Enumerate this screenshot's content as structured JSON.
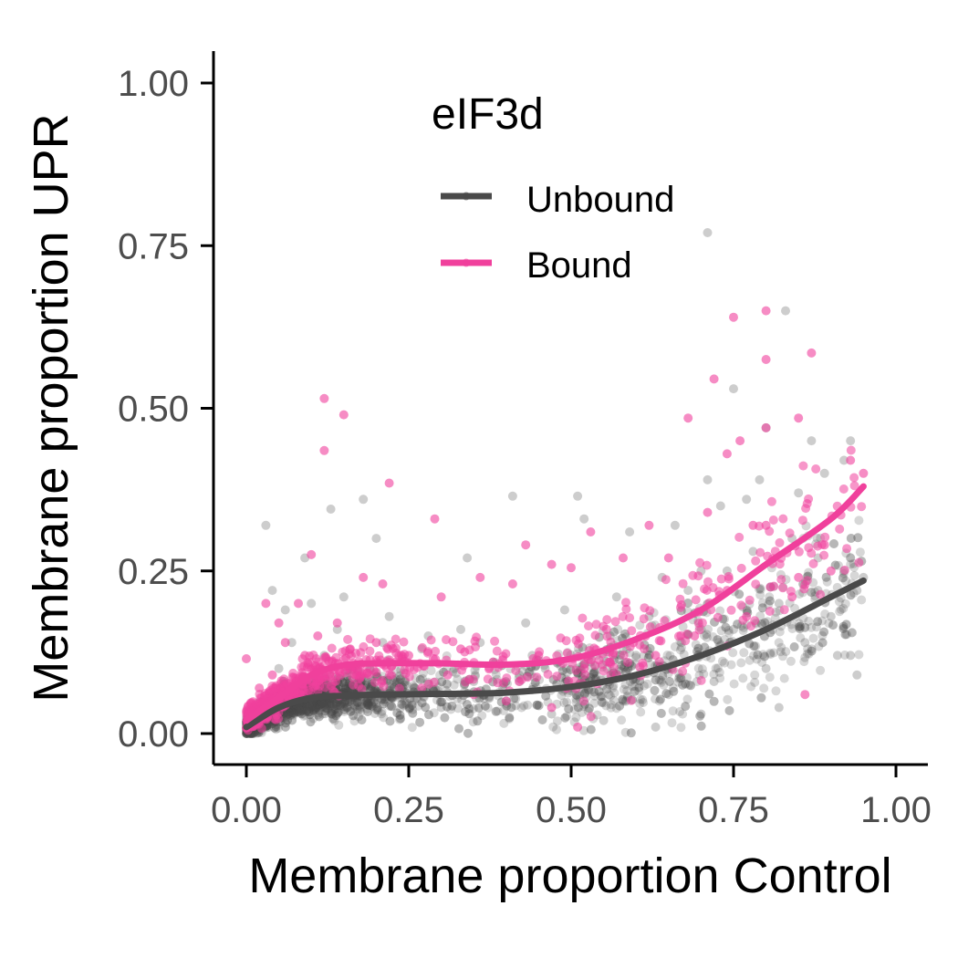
{
  "colors": {
    "unbound": "#4a4a4a",
    "bound": "#f0409c",
    "axis": "#000000",
    "tick_text": "#4d4d4d"
  },
  "chart_data": {
    "type": "scatter",
    "xlabel": "Membrane proportion Control",
    "ylabel": "Membrane proportion UPR",
    "xlim": [
      -0.05,
      1.05
    ],
    "ylim": [
      -0.05,
      1.05
    ],
    "x_ticks": [
      "0.00",
      "0.25",
      "0.50",
      "0.75",
      "1.00"
    ],
    "y_ticks": [
      "0.00",
      "0.25",
      "0.50",
      "0.75",
      "1.00"
    ],
    "grid": false,
    "legend": {
      "title": "eIF3d",
      "placement": "top-center inside plot",
      "entries": [
        "Unbound",
        "Bound"
      ]
    },
    "series": [
      {
        "name": "Unbound",
        "color": "#4a4a4a",
        "trend": {
          "x": [
            0.0,
            0.05,
            0.1,
            0.15,
            0.2,
            0.3,
            0.4,
            0.5,
            0.6,
            0.7,
            0.8,
            0.9,
            0.95
          ],
          "y": [
            0.01,
            0.04,
            0.055,
            0.058,
            0.06,
            0.061,
            0.063,
            0.072,
            0.09,
            0.12,
            0.16,
            0.21,
            0.235
          ]
        },
        "points": [
          [
            0.71,
            0.77
          ],
          [
            0.83,
            0.65
          ],
          [
            0.75,
            0.53
          ],
          [
            0.8,
            0.47
          ],
          [
            0.87,
            0.45
          ],
          [
            0.93,
            0.45
          ],
          [
            0.92,
            0.42
          ],
          [
            0.71,
            0.39
          ],
          [
            0.79,
            0.39
          ],
          [
            0.85,
            0.37
          ],
          [
            0.03,
            0.32
          ],
          [
            0.13,
            0.345
          ],
          [
            0.18,
            0.36
          ],
          [
            0.41,
            0.365
          ],
          [
            0.51,
            0.365
          ],
          [
            0.59,
            0.31
          ],
          [
            0.52,
            0.33
          ],
          [
            0.2,
            0.3
          ],
          [
            0.09,
            0.27
          ],
          [
            0.34,
            0.27
          ],
          [
            0.66,
            0.32
          ],
          [
            0.73,
            0.35
          ],
          [
            0.77,
            0.36
          ],
          [
            0.89,
            0.4
          ],
          [
            0.94,
            0.22
          ],
          [
            0.93,
            0.12
          ],
          [
            0.94,
            0.09
          ],
          [
            0.91,
            0.12
          ],
          [
            0.82,
            0.04
          ],
          [
            0.7,
            0.03
          ],
          [
            0.63,
            0.01
          ],
          [
            0.55,
            0.02
          ],
          [
            0.47,
            0.03
          ],
          [
            0.4,
            0.05
          ],
          [
            0.3,
            0.04
          ],
          [
            0.1,
            0.2
          ],
          [
            0.06,
            0.19
          ],
          [
            0.04,
            0.22
          ],
          [
            0.15,
            0.21
          ],
          [
            0.22,
            0.18
          ],
          [
            0.28,
            0.15
          ],
          [
            0.36,
            0.14
          ],
          [
            0.44,
            0.12
          ],
          [
            0.56,
            0.15
          ],
          [
            0.62,
            0.18
          ],
          [
            0.68,
            0.22
          ],
          [
            0.74,
            0.25
          ],
          [
            0.78,
            0.28
          ],
          [
            0.84,
            0.3
          ],
          [
            0.88,
            0.27
          ],
          [
            0.9,
            0.18
          ],
          [
            0.86,
            0.14
          ],
          [
            0.8,
            0.1
          ],
          [
            0.72,
            0.08
          ],
          [
            0.65,
            0.06
          ],
          [
            0.58,
            0.05
          ],
          [
            0.5,
            0.07
          ],
          [
            0.42,
            0.09
          ],
          [
            0.35,
            0.08
          ],
          [
            0.26,
            0.07
          ],
          [
            0.16,
            0.06
          ],
          [
            0.08,
            0.05
          ],
          [
            0.02,
            0.03
          ],
          [
            0.01,
            0.01
          ],
          [
            0.0,
            0.0
          ],
          [
            0.05,
            0.1
          ],
          [
            0.12,
            0.12
          ],
          [
            0.19,
            0.1
          ],
          [
            0.24,
            0.11
          ],
          [
            0.32,
            0.1
          ],
          [
            0.38,
            0.11
          ],
          [
            0.46,
            0.1
          ],
          [
            0.53,
            0.11
          ],
          [
            0.6,
            0.12
          ],
          [
            0.67,
            0.14
          ],
          [
            0.75,
            0.16
          ],
          [
            0.82,
            0.2
          ],
          [
            0.88,
            0.22
          ],
          [
            0.92,
            0.25
          ],
          [
            0.95,
            0.24
          ],
          [
            0.7,
            0.25
          ],
          [
            0.64,
            0.24
          ],
          [
            0.57,
            0.21
          ],
          [
            0.49,
            0.19
          ],
          [
            0.43,
            0.17
          ],
          [
            0.33,
            0.16
          ],
          [
            0.27,
            0.13
          ],
          [
            0.21,
            0.14
          ],
          [
            0.14,
            0.16
          ],
          [
            0.07,
            0.14
          ]
        ]
      },
      {
        "name": "Bound",
        "color": "#f0409c",
        "trend": {
          "x": [
            0.0,
            0.05,
            0.1,
            0.15,
            0.2,
            0.3,
            0.4,
            0.5,
            0.6,
            0.7,
            0.8,
            0.9,
            0.95
          ],
          "y": [
            0.02,
            0.055,
            0.09,
            0.105,
            0.108,
            0.108,
            0.106,
            0.115,
            0.145,
            0.19,
            0.26,
            0.33,
            0.38
          ]
        },
        "points": [
          [
            0.12,
            0.515
          ],
          [
            0.15,
            0.49
          ],
          [
            0.12,
            0.435
          ],
          [
            0.22,
            0.385
          ],
          [
            0.29,
            0.33
          ],
          [
            0.8,
            0.65
          ],
          [
            0.75,
            0.64
          ],
          [
            0.8,
            0.575
          ],
          [
            0.87,
            0.585
          ],
          [
            0.72,
            0.545
          ],
          [
            0.68,
            0.485
          ],
          [
            0.85,
            0.485
          ],
          [
            0.8,
            0.47
          ],
          [
            0.76,
            0.45
          ],
          [
            0.74,
            0.43
          ],
          [
            0.93,
            0.42
          ],
          [
            0.95,
            0.4
          ],
          [
            0.71,
            0.34
          ],
          [
            0.78,
            0.32
          ],
          [
            0.8,
            0.32
          ],
          [
            0.62,
            0.32
          ],
          [
            0.53,
            0.31
          ],
          [
            0.43,
            0.29
          ],
          [
            0.47,
            0.26
          ],
          [
            0.5,
            0.255
          ],
          [
            0.58,
            0.27
          ],
          [
            0.65,
            0.27
          ],
          [
            0.89,
            0.29
          ],
          [
            0.85,
            0.24
          ],
          [
            0.74,
            0.22
          ],
          [
            0.1,
            0.275
          ],
          [
            0.18,
            0.24
          ],
          [
            0.21,
            0.23
          ],
          [
            0.36,
            0.24
          ],
          [
            0.41,
            0.23
          ],
          [
            0.3,
            0.21
          ],
          [
            0.08,
            0.2
          ],
          [
            0.03,
            0.2
          ],
          [
            0.0,
            0.115
          ],
          [
            0.05,
            0.17
          ],
          [
            0.11,
            0.15
          ],
          [
            0.16,
            0.13
          ],
          [
            0.2,
            0.14
          ],
          [
            0.25,
            0.12
          ],
          [
            0.33,
            0.13
          ],
          [
            0.38,
            0.11
          ],
          [
            0.45,
            0.12
          ],
          [
            0.52,
            0.1
          ],
          [
            0.56,
            0.11
          ],
          [
            0.63,
            0.12
          ],
          [
            0.69,
            0.15
          ],
          [
            0.77,
            0.18
          ],
          [
            0.84,
            0.21
          ],
          [
            0.9,
            0.25
          ],
          [
            0.86,
            0.06
          ],
          [
            0.51,
            0.01
          ],
          [
            0.47,
            0.04
          ],
          [
            0.4,
            0.05
          ],
          [
            0.35,
            0.06
          ],
          [
            0.27,
            0.07
          ],
          [
            0.13,
            0.1
          ],
          [
            0.09,
            0.12
          ],
          [
            0.04,
            0.09
          ],
          [
            0.02,
            0.07
          ],
          [
            0.06,
            0.14
          ],
          [
            0.14,
            0.17
          ],
          [
            0.17,
            0.09
          ],
          [
            0.23,
            0.11
          ],
          [
            0.31,
            0.09
          ],
          [
            0.42,
            0.08
          ]
        ]
      }
    ]
  }
}
